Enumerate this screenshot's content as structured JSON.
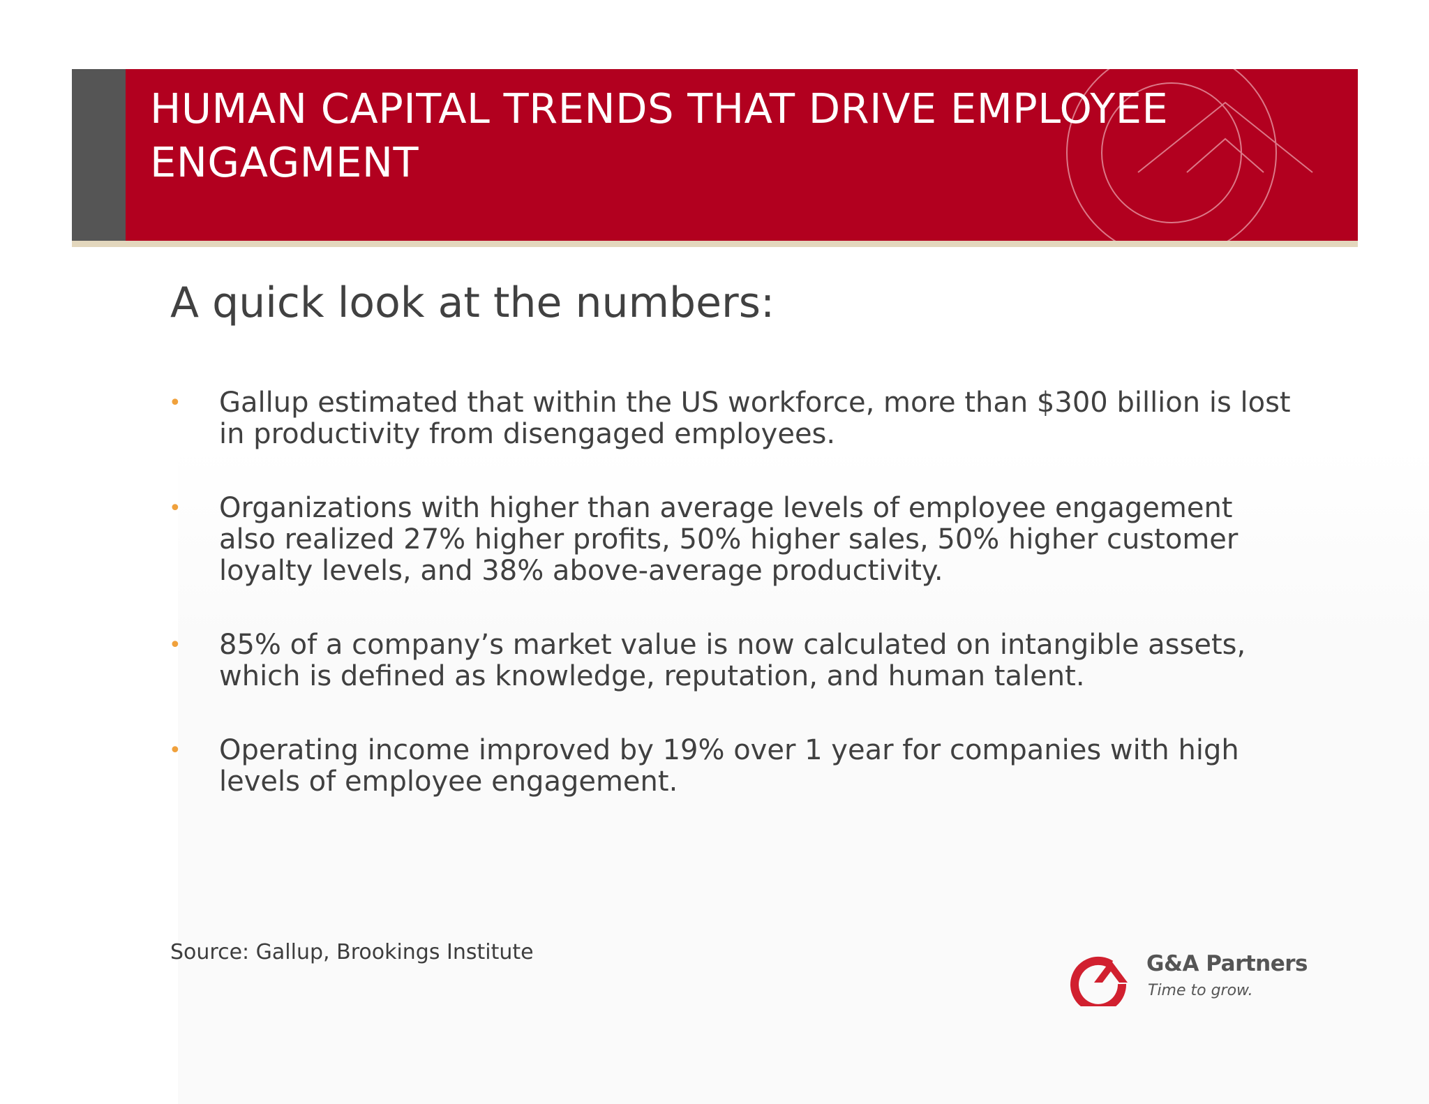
{
  "header": {
    "title": "HUMAN CAPITAL TRENDS THAT DRIVE EMPLOYEE ENGAGMENT"
  },
  "subtitle": "A quick look at the numbers:",
  "bullets": [
    {
      "text": "Gallup estimated that within the US workforce, more than $300 billion is lost in productivity from disengaged employees."
    },
    {
      "text": "Organizations with higher than average levels of employee engagement also realized 27% higher profits, 50% higher sales, 50% higher customer loyalty levels, and 38% above-average productivity."
    },
    {
      "text": "85% of a company’s market value is now calculated on intangible assets, which is defined as knowledge, reputation, and human talent."
    },
    {
      "text": "Operating income improved by 19% over 1 year for companies with high levels of employee engagement."
    }
  ],
  "bullet_marker": "•",
  "source": "Source: Gallup, Brookings Institute",
  "logo": {
    "name": "G&A Partners",
    "tagline": "Time to grow.",
    "icon": "ga-partners-logo-icon"
  },
  "colors": {
    "banner": "#b2001f",
    "banner_sidebar": "#555555",
    "banner_underline": "#e3d7bd",
    "bullet_marker": "#f0a13c",
    "text": "#404040",
    "logo_red": "#d1202f"
  }
}
